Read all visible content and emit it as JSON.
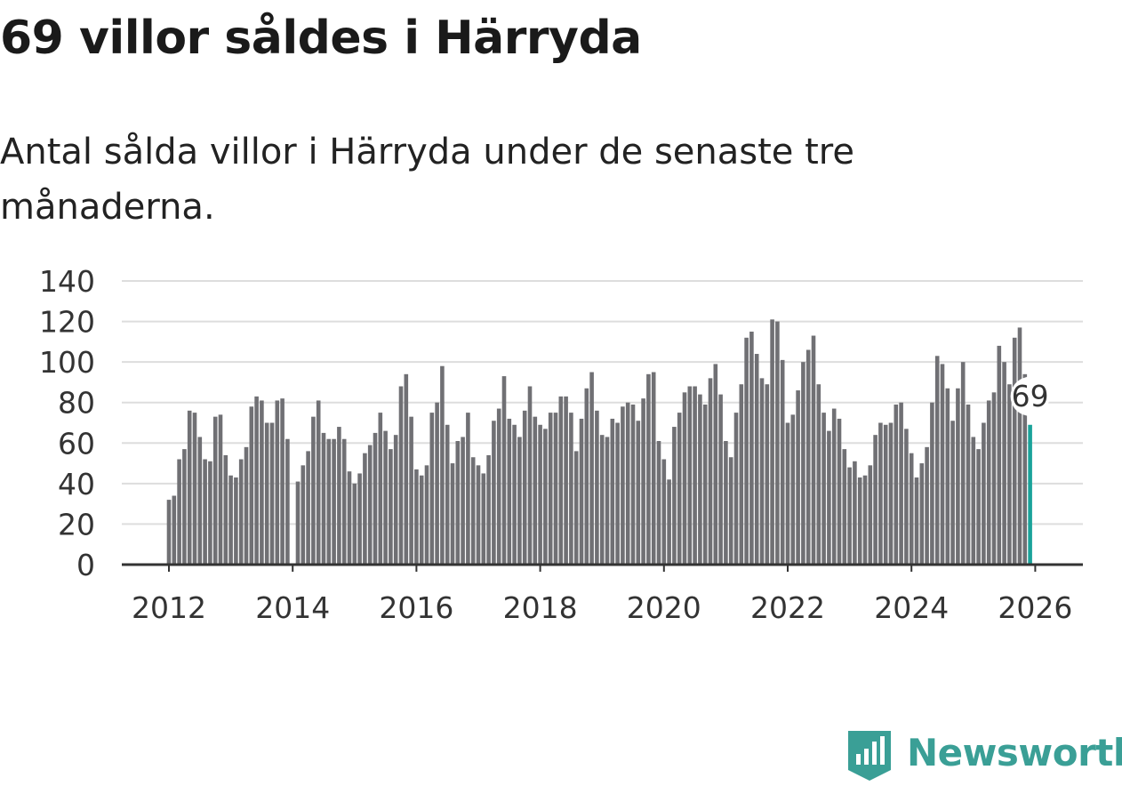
{
  "title": "69 villor såldes i Härryda",
  "subtitle": "Antal sålda villor i Härryda under de senaste tre månaderna.",
  "brand": {
    "name": "Newsworthy"
  },
  "colors": {
    "bar": "#707074",
    "highlight": "#1aa39a",
    "grid": "#dddddd",
    "axis": "#333333",
    "brand": "#3a9f96"
  },
  "chart_data": {
    "type": "bar",
    "title": "",
    "xlabel": "",
    "ylabel": "",
    "ylim": [
      0,
      140
    ],
    "yticks": [
      "0",
      "20",
      "40",
      "60",
      "80",
      "100",
      "120",
      "140"
    ],
    "xticks": [
      "2012",
      "2014",
      "2016",
      "2018",
      "2020",
      "2022",
      "2024",
      "2026"
    ],
    "x_start": "2012-01",
    "highlight_label": "69",
    "series": [
      {
        "name": "Antal sålda villor (rullande tre månader)",
        "values": [
          32,
          34,
          52,
          57,
          76,
          75,
          63,
          52,
          51,
          73,
          74,
          54,
          44,
          43,
          52,
          58,
          78,
          83,
          81,
          70,
          70,
          81,
          82,
          62,
          null,
          41,
          49,
          56,
          73,
          81,
          65,
          62,
          62,
          68,
          62,
          46,
          40,
          45,
          55,
          59,
          65,
          75,
          66,
          57,
          64,
          88,
          94,
          73,
          47,
          44,
          49,
          75,
          80,
          98,
          69,
          50,
          61,
          63,
          75,
          53,
          49,
          45,
          54,
          71,
          77,
          93,
          72,
          69,
          63,
          76,
          88,
          73,
          69,
          67,
          75,
          75,
          83,
          83,
          75,
          56,
          72,
          87,
          95,
          76,
          64,
          63,
          72,
          70,
          78,
          80,
          79,
          71,
          82,
          94,
          95,
          61,
          52,
          42,
          68,
          75,
          85,
          88,
          88,
          84,
          79,
          92,
          99,
          84,
          61,
          53,
          75,
          89,
          112,
          115,
          104,
          92,
          89,
          121,
          120,
          101,
          70,
          74,
          86,
          100,
          106,
          113,
          89,
          75,
          66,
          77,
          72,
          57,
          48,
          51,
          43,
          44,
          49,
          64,
          70,
          69,
          70,
          79,
          80,
          67,
          55,
          43,
          50,
          58,
          80,
          103,
          99,
          87,
          71,
          87,
          100,
          79,
          63,
          57,
          70,
          81,
          85,
          108,
          100,
          89,
          112,
          117,
          94,
          69
        ]
      }
    ]
  }
}
